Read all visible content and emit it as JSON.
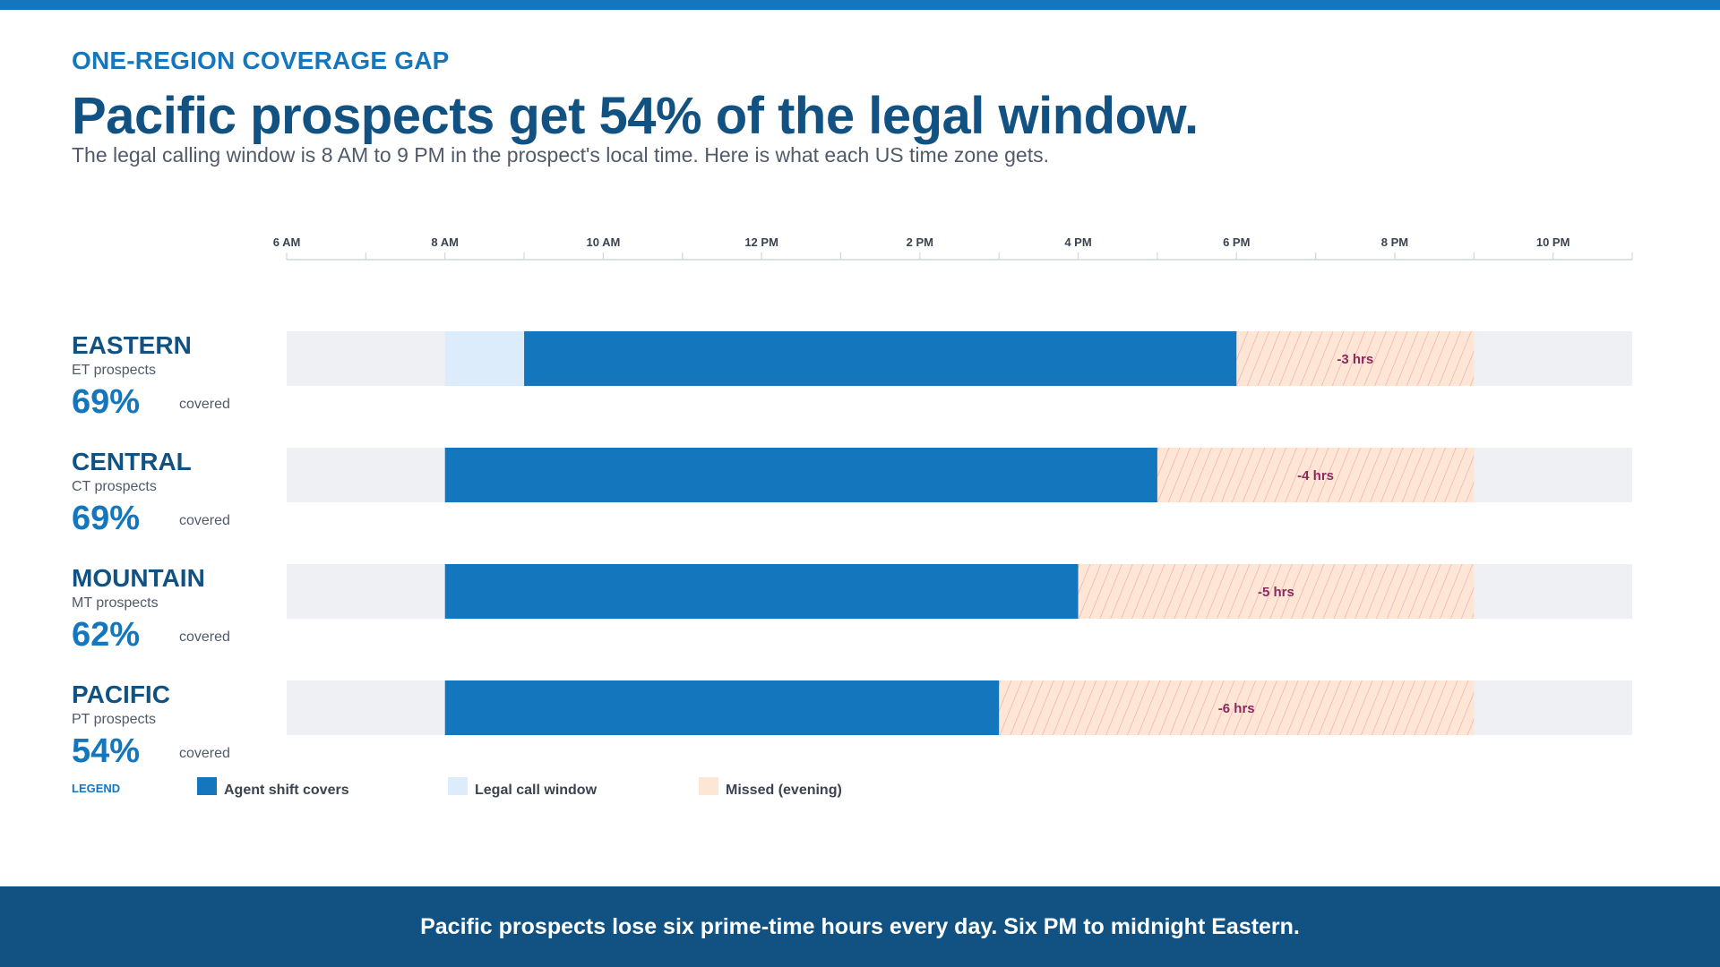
{
  "header": {
    "eyebrow": "ONE-REGION COVERAGE GAP",
    "title": "Pacific prospects get 54% of the legal window.",
    "subtitle": "The legal calling window is 8 AM to 9 PM in the prospect's local time. Here is what each US time zone gets."
  },
  "chart_data": {
    "type": "bar",
    "orientation": "horizontal-timeline",
    "x_axis": {
      "range": [
        6,
        23
      ],
      "ticks": [
        {
          "value": 6,
          "label": "6 AM"
        },
        {
          "value": 8,
          "label": "8 AM"
        },
        {
          "value": 10,
          "label": "10 AM"
        },
        {
          "value": 12,
          "label": "12 PM"
        },
        {
          "value": 14,
          "label": "2 PM"
        },
        {
          "value": 16,
          "label": "4 PM"
        },
        {
          "value": 18,
          "label": "6 PM"
        },
        {
          "value": 20,
          "label": "8 PM"
        },
        {
          "value": 22,
          "label": "10 PM"
        }
      ]
    },
    "legal_window": [
      8,
      21
    ],
    "rows": [
      {
        "name": "EASTERN",
        "sub": "ET prospects",
        "percent": "69%",
        "covered_label": "covered",
        "shift": [
          9,
          18
        ],
        "missed": [
          18,
          21
        ],
        "missed_label": "-3 hrs"
      },
      {
        "name": "CENTRAL",
        "sub": "CT prospects",
        "percent": "69%",
        "covered_label": "covered",
        "shift": [
          8,
          17
        ],
        "missed": [
          17,
          21
        ],
        "missed_label": "-4 hrs"
      },
      {
        "name": "MOUNTAIN",
        "sub": "MT prospects",
        "percent": "62%",
        "covered_label": "covered",
        "shift": [
          8,
          16
        ],
        "missed": [
          16,
          21
        ],
        "missed_label": "-5 hrs"
      },
      {
        "name": "PACIFIC",
        "sub": "PT prospects",
        "percent": "54%",
        "covered_label": "covered",
        "shift": [
          8,
          15
        ],
        "missed": [
          15,
          21
        ],
        "missed_label": "-6 hrs"
      }
    ],
    "legend": {
      "title": "LEGEND",
      "items": [
        {
          "key": "shift",
          "label": "Agent shift covers",
          "color": "#1477be"
        },
        {
          "key": "window",
          "label": "Legal call window",
          "color": "#dcecfb"
        },
        {
          "key": "missed",
          "label": "Missed (evening)",
          "color": "#fde6d3"
        }
      ]
    },
    "colors": {
      "shift": "#1477be",
      "window": "#dcecfb",
      "missed": "#fde6d3",
      "missed_hatch": "#f0a0b8",
      "missed_text": "#8a2a5e",
      "track": "#eff0f4",
      "zone_name": "#115282",
      "percent": "#1477be"
    }
  },
  "footer": {
    "text": "Pacific prospects lose six prime-time hours every day. Six PM to midnight Eastern."
  }
}
